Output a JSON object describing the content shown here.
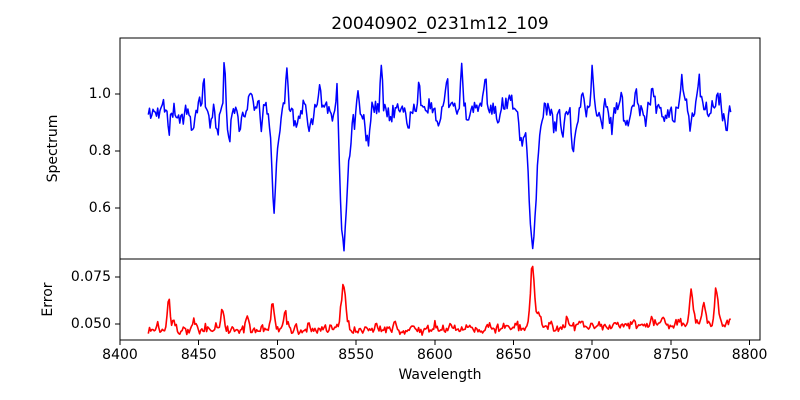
{
  "figure": {
    "title": "20040902_0231m12_109",
    "xlabel": "Wavelength",
    "background_color": "#ffffff",
    "x_ticks": [
      {
        "value": 8400,
        "label": "8400"
      },
      {
        "value": 8450,
        "label": "8450"
      },
      {
        "value": 8500,
        "label": "8500"
      },
      {
        "value": 8550,
        "label": "8550"
      },
      {
        "value": 8600,
        "label": "8600"
      },
      {
        "value": 8650,
        "label": "8650"
      },
      {
        "value": 8700,
        "label": "8700"
      },
      {
        "value": 8750,
        "label": "8750"
      },
      {
        "value": 8800,
        "label": "8800"
      }
    ]
  },
  "chart_data": [
    {
      "type": "line",
      "name": "spectrum",
      "ylabel": "Spectrum",
      "color": "#0000ff",
      "line_width": 1.5,
      "xlim": [
        8400,
        8806.6
      ],
      "ylim": [
        0.421,
        1.196
      ],
      "y_ticks": [
        {
          "value": 1.0,
          "label": "1.0"
        },
        {
          "value": 0.8,
          "label": "0.8"
        },
        {
          "value": 0.6,
          "label": "0.6"
        }
      ],
      "x_start": 8418,
      "x_end": 8788,
      "x_step": 0.74,
      "noise_amplitude": 0.045,
      "noise_seed": 42,
      "baseline_points": [
        [
          8418,
          0.925
        ],
        [
          8428,
          0.945
        ],
        [
          8440,
          0.935
        ],
        [
          8452,
          0.95
        ],
        [
          8462,
          0.94
        ],
        [
          8475,
          0.945
        ],
        [
          8488,
          0.955
        ],
        [
          8502,
          0.95
        ],
        [
          8515,
          0.945
        ],
        [
          8530,
          0.95
        ],
        [
          8545,
          0.945
        ],
        [
          8560,
          0.95
        ],
        [
          8575,
          0.95
        ],
        [
          8590,
          0.955
        ],
        [
          8605,
          0.95
        ],
        [
          8620,
          0.95
        ],
        [
          8635,
          0.95
        ],
        [
          8650,
          0.945
        ],
        [
          8665,
          0.945
        ],
        [
          8678,
          0.94
        ],
        [
          8692,
          0.945
        ],
        [
          8705,
          0.95
        ],
        [
          8720,
          0.945
        ],
        [
          8735,
          0.95
        ],
        [
          8750,
          0.95
        ],
        [
          8765,
          0.95
        ],
        [
          8778,
          0.952
        ],
        [
          8788,
          0.93
        ]
      ],
      "features": [
        [
          8427,
          0.05,
          0.8
        ],
        [
          8431,
          -0.05,
          0.8
        ],
        [
          8438,
          -0.04,
          0.9
        ],
        [
          8446,
          -0.09,
          1.0
        ],
        [
          8453,
          0.09,
          0.8
        ],
        [
          8457,
          -0.05,
          0.8
        ],
        [
          8462,
          -0.08,
          0.9
        ],
        [
          8466.5,
          0.17,
          0.8
        ],
        [
          8469,
          -0.12,
          0.9
        ],
        [
          8476,
          -0.06,
          0.9
        ],
        [
          8483,
          0.05,
          0.8
        ],
        [
          8490,
          -0.05,
          0.9
        ],
        [
          8498,
          -0.3,
          1.6
        ],
        [
          8498,
          -0.03,
          4.0
        ],
        [
          8506,
          0.15,
          0.8
        ],
        [
          8512,
          -0.06,
          1.0
        ],
        [
          8521,
          -0.07,
          1.0
        ],
        [
          8527,
          0.06,
          0.8
        ],
        [
          8538,
          0.2,
          0.8
        ],
        [
          8542,
          -0.42,
          2.2
        ],
        [
          8542,
          -0.06,
          6.0
        ],
        [
          8551,
          0.06,
          0.8
        ],
        [
          8557,
          -0.12,
          1.2
        ],
        [
          8566,
          0.12,
          0.8
        ],
        [
          8572,
          -0.05,
          0.9
        ],
        [
          8583,
          -0.08,
          1.0
        ],
        [
          8590,
          0.06,
          0.8
        ],
        [
          8602,
          -0.08,
          1.0
        ],
        [
          8608,
          0.07,
          0.8
        ],
        [
          8617,
          0.13,
          0.8
        ],
        [
          8621,
          -0.06,
          0.9
        ],
        [
          8632,
          0.14,
          0.8
        ],
        [
          8640,
          -0.05,
          0.9
        ],
        [
          8648,
          0.06,
          0.8
        ],
        [
          8655,
          -0.1,
          1.0
        ],
        [
          8662,
          -0.42,
          2.2
        ],
        [
          8662,
          -0.05,
          6.0
        ],
        [
          8670,
          0.05,
          0.8
        ],
        [
          8676,
          -0.06,
          0.9
        ],
        [
          8681,
          -0.1,
          1.0
        ],
        [
          8688,
          -0.16,
          1.1
        ],
        [
          8694,
          0.05,
          0.8
        ],
        [
          8700,
          0.13,
          0.8
        ],
        [
          8706,
          -0.05,
          0.9
        ],
        [
          8712,
          -0.07,
          1.0
        ],
        [
          8718,
          0.06,
          0.8
        ],
        [
          8722,
          -0.08,
          1.0
        ],
        [
          8728,
          0.06,
          0.8
        ],
        [
          8734,
          -0.05,
          0.9
        ],
        [
          8738,
          0.07,
          0.8
        ],
        [
          8745,
          -0.04,
          0.9
        ],
        [
          8752,
          -0.06,
          0.9
        ],
        [
          8757,
          0.12,
          0.8
        ],
        [
          8762,
          -0.05,
          0.9
        ],
        [
          8768,
          0.11,
          0.8
        ],
        [
          8774,
          -0.05,
          0.9
        ],
        [
          8780,
          0.06,
          0.8
        ],
        [
          8785,
          -0.06,
          0.9
        ]
      ],
      "notable_absorption_lines": [
        8498,
        8542,
        8662
      ]
    },
    {
      "type": "line",
      "name": "error",
      "ylabel": "Error",
      "color": "#ff0000",
      "line_width": 1.6,
      "xlim": [
        8400,
        8806.6
      ],
      "ylim": [
        0.0415,
        0.0846
      ],
      "y_ticks": [
        {
          "value": 0.075,
          "label": "0.075"
        },
        {
          "value": 0.05,
          "label": "0.050"
        }
      ],
      "x_start": 8418,
      "x_end": 8788,
      "x_step": 0.74,
      "noise_amplitude": 0.003,
      "noise_seed": 1337,
      "baseline_points": [
        [
          8418,
          0.0468
        ],
        [
          8450,
          0.0467
        ],
        [
          8480,
          0.0468
        ],
        [
          8510,
          0.0466
        ],
        [
          8540,
          0.0468
        ],
        [
          8570,
          0.0467
        ],
        [
          8600,
          0.0469
        ],
        [
          8630,
          0.0472
        ],
        [
          8660,
          0.0476
        ],
        [
          8690,
          0.0482
        ],
        [
          8720,
          0.049
        ],
        [
          8750,
          0.0497
        ],
        [
          8775,
          0.0503
        ],
        [
          8788,
          0.0505
        ]
      ],
      "features": [
        [
          8424,
          0.003,
          0.8
        ],
        [
          8431,
          0.018,
          0.9
        ],
        [
          8434,
          0.006,
          0.8
        ],
        [
          8440,
          0.002,
          0.8
        ],
        [
          8447,
          0.005,
          0.9
        ],
        [
          8455,
          0.002,
          0.8
        ],
        [
          8461,
          0.003,
          0.8
        ],
        [
          8465,
          0.012,
          0.9
        ],
        [
          8472,
          0.002,
          0.8
        ],
        [
          8481,
          0.007,
          1.0
        ],
        [
          8490,
          0.002,
          0.8
        ],
        [
          8497,
          0.013,
          1.1
        ],
        [
          8505,
          0.01,
          1.0
        ],
        [
          8512,
          0.002,
          0.8
        ],
        [
          8520,
          0.003,
          0.8
        ],
        [
          8530,
          0.003,
          0.9
        ],
        [
          8542,
          0.019,
          1.4
        ],
        [
          8542,
          0.004,
          4.0
        ],
        [
          8547,
          -0.003,
          1.0
        ],
        [
          8556,
          0.002,
          0.8
        ],
        [
          8563,
          0.003,
          0.8
        ],
        [
          8575,
          0.003,
          0.9
        ],
        [
          8585,
          0.002,
          0.8
        ],
        [
          8600,
          0.003,
          0.9
        ],
        [
          8610,
          0.003,
          0.8
        ],
        [
          8622,
          0.002,
          0.8
        ],
        [
          8634,
          0.003,
          0.9
        ],
        [
          8646,
          0.004,
          0.9
        ],
        [
          8652,
          0.005,
          0.9
        ],
        [
          8662,
          0.033,
          1.2
        ],
        [
          8666,
          0.008,
          1.2
        ],
        [
          8673,
          0.004,
          0.9
        ],
        [
          8684,
          0.005,
          0.9
        ],
        [
          8692,
          0.003,
          0.8
        ],
        [
          8705,
          0.003,
          0.9
        ],
        [
          8715,
          0.002,
          0.8
        ],
        [
          8727,
          0.003,
          0.8
        ],
        [
          8738,
          0.003,
          0.9
        ],
        [
          8745,
          0.004,
          0.9
        ],
        [
          8756,
          0.003,
          0.8
        ],
        [
          8763,
          0.017,
          1.1
        ],
        [
          8771,
          0.013,
          1.0
        ],
        [
          8779,
          0.019,
          1.2
        ],
        [
          8788,
          0.003,
          0.9
        ]
      ],
      "notable_error_peaks": [
        8431,
        8465,
        8497,
        8542,
        8662,
        8763,
        8779
      ]
    }
  ]
}
